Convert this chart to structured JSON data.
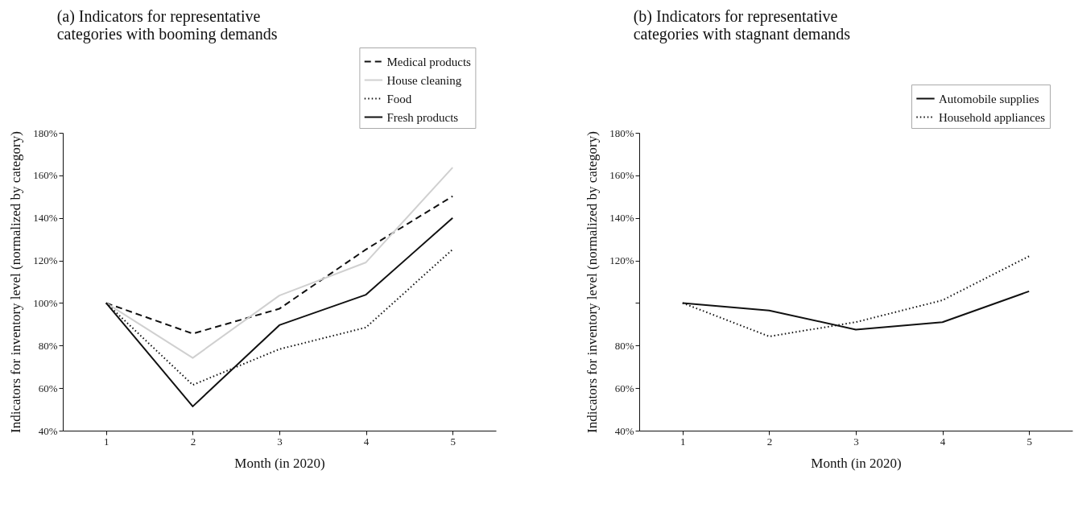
{
  "chart_data": [
    {
      "type": "line",
      "title": "(a) Indicators for representative categories with booming demands",
      "xlabel": "Month (in 2020)",
      "ylabel": "Indicators for inventory level (normalized by category)",
      "x": [
        1,
        2,
        3,
        4,
        5
      ],
      "xlim": [
        0.5,
        5.5
      ],
      "xticks": [
        1,
        2,
        3,
        4,
        5
      ],
      "ylim": [
        40,
        180
      ],
      "yticks": [
        {
          "value": 40,
          "label": "40%"
        },
        {
          "value": 60,
          "label": "60%"
        },
        {
          "value": 80,
          "label": "80%"
        },
        {
          "value": 100,
          "label": "100%"
        },
        {
          "value": 120,
          "label": "120%"
        },
        {
          "value": 140,
          "label": "140%"
        },
        {
          "value": 160,
          "label": "160%"
        },
        {
          "value": 180,
          "label": "180%"
        }
      ],
      "legend": "top right",
      "series": [
        {
          "name": "Medical products",
          "color": "#111111",
          "line_style": "dashed",
          "values": [
            100,
            85.6,
            97.3,
            125.2,
            150.2
          ]
        },
        {
          "name": "House cleaning",
          "color": "#d0d0d0",
          "line_style": "solid",
          "values": [
            100,
            74.2,
            103.5,
            119.1,
            163.7
          ]
        },
        {
          "name": "Food",
          "color": "#111111",
          "line_style": "dotted",
          "values": [
            100,
            61.5,
            78.3,
            88.5,
            125.2
          ]
        },
        {
          "name": "Fresh products",
          "color": "#111111",
          "line_style": "solid",
          "values": [
            100,
            51.4,
            89.6,
            103.9,
            140
          ]
        }
      ]
    },
    {
      "type": "line",
      "title": "(b) Indicators for representative categories with stagnant demands",
      "xlabel": "Month (in 2020)",
      "ylabel": "Indicators for inventory level (normalized by category)",
      "x": [
        1,
        2,
        3,
        4,
        5
      ],
      "xlim": [
        0.5,
        5.5
      ],
      "xticks": [
        1,
        2,
        3,
        4,
        5
      ],
      "ylim": [
        40,
        180
      ],
      "yticks": [
        {
          "value": 40,
          "label": "40%"
        },
        {
          "value": 60,
          "label": "60%"
        },
        {
          "value": 80,
          "label": "80%"
        },
        {
          "value": 100,
          "label": null
        },
        {
          "value": 120,
          "label": "120%"
        },
        {
          "value": 140,
          "label": "140%"
        },
        {
          "value": 160,
          "label": "160%"
        },
        {
          "value": 180,
          "label": "180%"
        }
      ],
      "legend": "top right",
      "series": [
        {
          "name": "Automobile supplies",
          "color": "#111111",
          "line_style": "solid",
          "values": [
            100,
            96.5,
            87.5,
            91,
            105.5
          ]
        },
        {
          "name": "Household appliances",
          "color": "#111111",
          "line_style": "dotted",
          "values": [
            100,
            84.3,
            91,
            101.3,
            122
          ]
        }
      ]
    }
  ]
}
